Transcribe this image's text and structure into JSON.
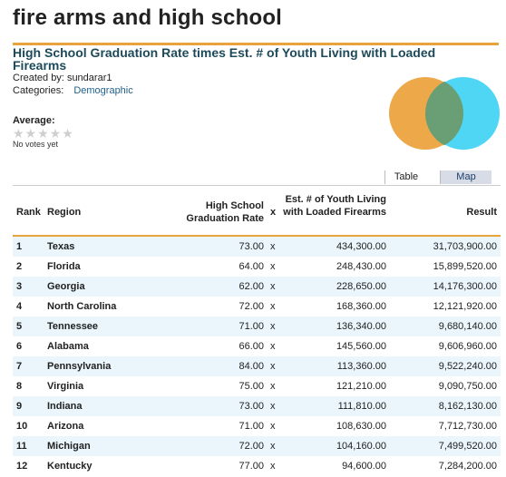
{
  "page": {
    "title": "fire arms and high school",
    "subtitle": "High School Graduation Rate times Est. # of Youth Living with Loaded Firearms",
    "created_by_label": "Created by:",
    "created_by": "sundarar1",
    "categories_label": "Categories:",
    "category": "Demographic"
  },
  "rating": {
    "label": "Average:",
    "stars": "★★★★★",
    "votes_text": "No votes yet"
  },
  "venn": {
    "left_color": "#eda84a",
    "right_color": "#4fd6f5",
    "overlap_color": "#6a9e74"
  },
  "view_tabs": {
    "table": "Table",
    "map": "Map"
  },
  "table": {
    "headers": {
      "rank": "Rank",
      "region": "Region",
      "grad": "High School Graduation Rate",
      "x": "x",
      "youth": "Est. # of Youth Living with Loaded Firearms",
      "result": "Result"
    },
    "rows": [
      {
        "rank": "1",
        "region": "Texas",
        "grad": "73.00",
        "x": "x",
        "youth": "434,300.00",
        "result": "31,703,900.00"
      },
      {
        "rank": "2",
        "region": "Florida",
        "grad": "64.00",
        "x": "x",
        "youth": "248,430.00",
        "result": "15,899,520.00"
      },
      {
        "rank": "3",
        "region": "Georgia",
        "grad": "62.00",
        "x": "x",
        "youth": "228,650.00",
        "result": "14,176,300.00"
      },
      {
        "rank": "4",
        "region": "North Carolina",
        "grad": "72.00",
        "x": "x",
        "youth": "168,360.00",
        "result": "12,121,920.00"
      },
      {
        "rank": "5",
        "region": "Tennessee",
        "grad": "71.00",
        "x": "x",
        "youth": "136,340.00",
        "result": "9,680,140.00"
      },
      {
        "rank": "6",
        "region": "Alabama",
        "grad": "66.00",
        "x": "x",
        "youth": "145,560.00",
        "result": "9,606,960.00"
      },
      {
        "rank": "7",
        "region": "Pennsylvania",
        "grad": "84.00",
        "x": "x",
        "youth": "113,360.00",
        "result": "9,522,240.00"
      },
      {
        "rank": "8",
        "region": "Virginia",
        "grad": "75.00",
        "x": "x",
        "youth": "121,210.00",
        "result": "9,090,750.00"
      },
      {
        "rank": "9",
        "region": "Indiana",
        "grad": "73.00",
        "x": "x",
        "youth": "111,810.00",
        "result": "8,162,130.00"
      },
      {
        "rank": "10",
        "region": "Arizona",
        "grad": "71.00",
        "x": "x",
        "youth": "108,630.00",
        "result": "7,712,730.00"
      },
      {
        "rank": "11",
        "region": "Michigan",
        "grad": "72.00",
        "x": "x",
        "youth": "104,160.00",
        "result": "7,499,520.00"
      },
      {
        "rank": "12",
        "region": "Kentucky",
        "grad": "77.00",
        "x": "x",
        "youth": "94,600.00",
        "result": "7,284,200.00"
      }
    ]
  }
}
